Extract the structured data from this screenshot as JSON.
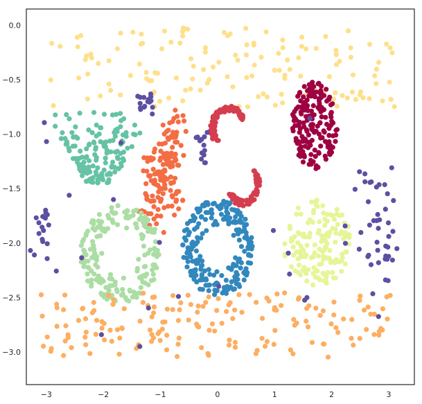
{
  "chart_data": {
    "type": "scatter",
    "title": "",
    "xlabel": "",
    "ylabel": "",
    "xlim": [
      -3.35,
      3.45
    ],
    "ylim": [
      -3.3,
      0.15
    ],
    "grid": false,
    "legend": "none",
    "x_ticks": [
      -3,
      -2,
      -1,
      0,
      1,
      2,
      3
    ],
    "y_ticks": [
      0.0,
      -0.5,
      -1.0,
      -1.5,
      -2.0,
      -2.5,
      -3.0
    ],
    "x_tick_labels": [
      "−3",
      "−2",
      "−1",
      "0",
      "1",
      "2",
      "3"
    ],
    "y_tick_labels": [
      "0.0",
      "−0.5",
      "−1.0",
      "−1.5",
      "−2.0",
      "−2.5",
      "−3.0"
    ],
    "series": [
      {
        "color": "#fee08b",
        "count": 140,
        "region": {
          "x": [
            -3.0,
            3.1
          ],
          "y": [
            -0.75,
            0.0
          ]
        },
        "shape": "band"
      },
      {
        "color": "#66c2a5",
        "count": 150,
        "region": {
          "x": [
            -3.1,
            -1.25
          ],
          "y": [
            -1.45,
            -0.8
          ]
        },
        "shape": "triangle"
      },
      {
        "color": "#9e0142",
        "count": 180,
        "center": [
          1.7,
          -0.92
        ],
        "radius": [
          0.4,
          0.4
        ],
        "shape": "disk"
      },
      {
        "color": "#d53e4f",
        "count": 150,
        "region": {
          "x": [
            -0.35,
            0.95
          ],
          "y": [
            -1.65,
            -0.65
          ]
        },
        "shape": "crescent"
      },
      {
        "color": "#f46d43",
        "count": 150,
        "region": {
          "x": [
            -1.45,
            -0.55
          ],
          "y": [
            -1.9,
            -0.8
          ]
        },
        "shape": "blob"
      },
      {
        "color": "#3288bd",
        "count": 230,
        "center": [
          0.0,
          -2.05
        ],
        "radius": [
          0.62,
          0.45
        ],
        "shape": "ring"
      },
      {
        "color": "#e6f598",
        "count": 150,
        "center": [
          1.75,
          -2.0
        ],
        "radius": [
          0.6,
          0.4
        ],
        "shape": "disk"
      },
      {
        "color": "#abdda4",
        "count": 190,
        "center": [
          -1.7,
          -2.1
        ],
        "radius": [
          0.7,
          0.45
        ],
        "shape": "ring"
      },
      {
        "color": "#fdae61",
        "count": 170,
        "region": {
          "x": [
            -3.1,
            3.1
          ],
          "y": [
            -3.05,
            -2.45
          ]
        },
        "shape": "band"
      },
      {
        "color": "#5e4fa2",
        "count": 110,
        "shape": "clusters"
      }
    ]
  }
}
